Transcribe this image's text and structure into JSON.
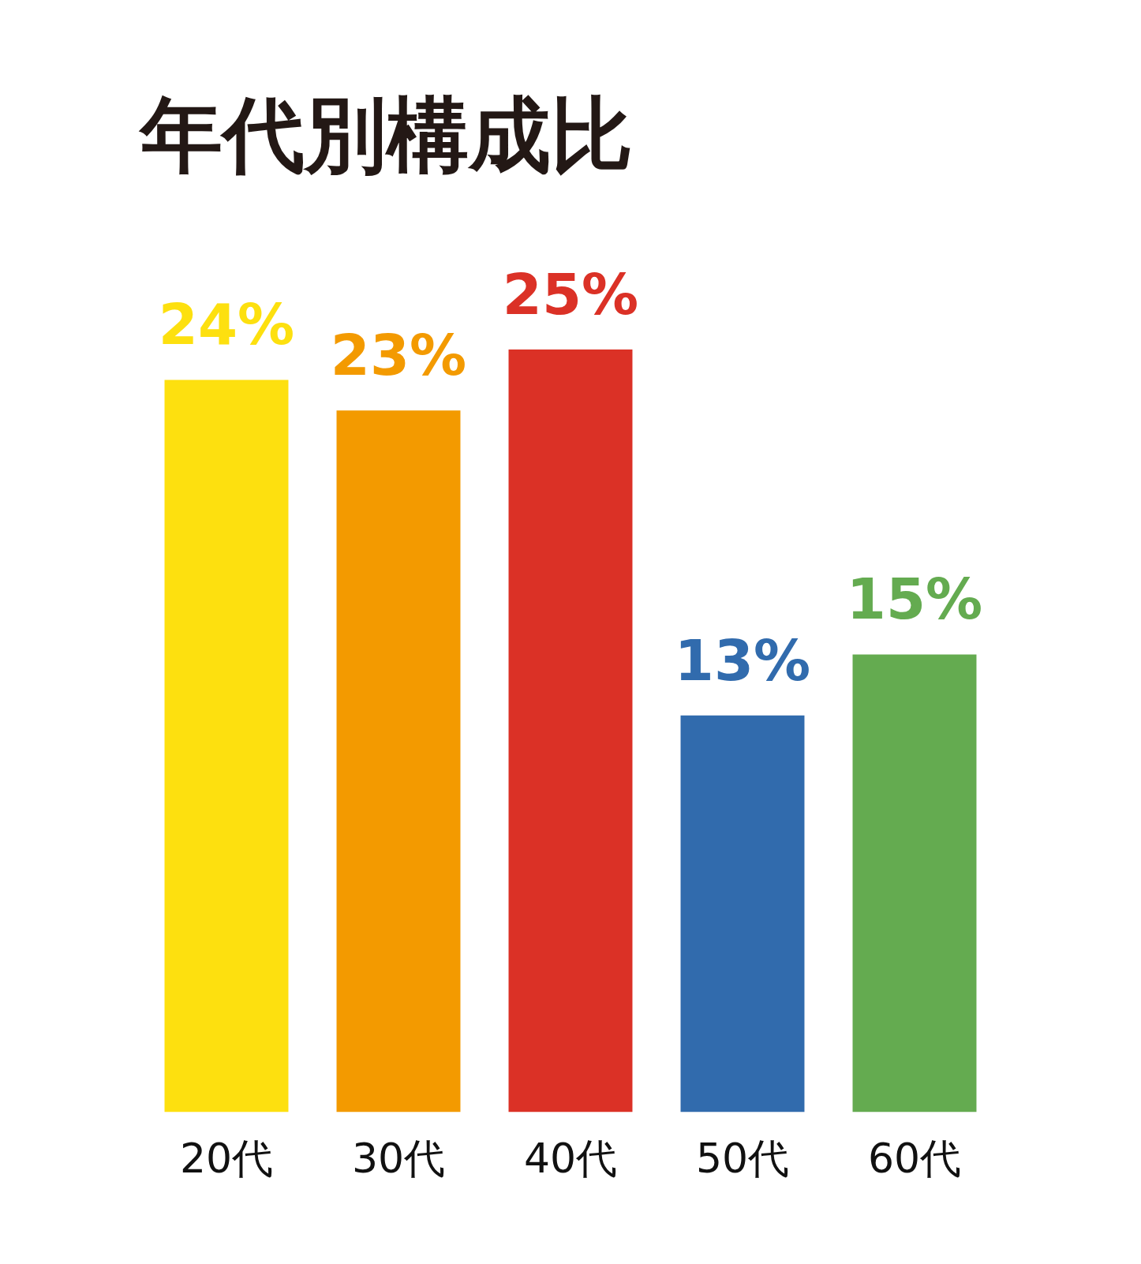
{
  "chart_data": {
    "type": "bar",
    "title": "年代別構成比",
    "categories": [
      "20代",
      "30代",
      "40代",
      "50代",
      "60代"
    ],
    "values": [
      24,
      23,
      25,
      13,
      15
    ],
    "colors": [
      "#fde00f",
      "#f39a00",
      "#db3126",
      "#316bad",
      "#64ab50"
    ],
    "value_labels": [
      "24%",
      "23%",
      "25%",
      "13%",
      "15%"
    ],
    "legend": false
  }
}
